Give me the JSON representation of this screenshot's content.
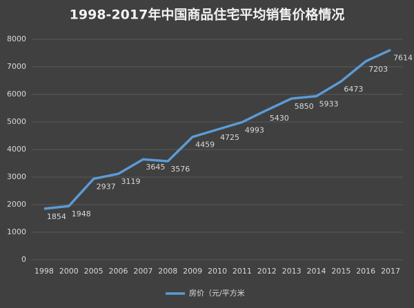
{
  "chart_data": {
    "type": "line",
    "title": "1998-2017年中国商品住宅平均销售价格情况",
    "categories": [
      "1998",
      "2000",
      "2005",
      "2006",
      "2007",
      "2008",
      "2009",
      "2010",
      "2011",
      "2012",
      "2013",
      "2014",
      "2015",
      "2016",
      "2017"
    ],
    "series": [
      {
        "name": "房价（元/平方米",
        "color": "#5b9bd5",
        "values": [
          1854,
          1948,
          2937,
          3119,
          3645,
          3576,
          4459,
          4725,
          4993,
          5430,
          5850,
          5933,
          6473,
          7203,
          7614
        ]
      }
    ],
    "ylim": [
      0,
      8000
    ],
    "yticks": [
      0,
      1000,
      2000,
      3000,
      4000,
      5000,
      6000,
      7000,
      8000
    ],
    "grid": true,
    "legend": "bottom"
  }
}
